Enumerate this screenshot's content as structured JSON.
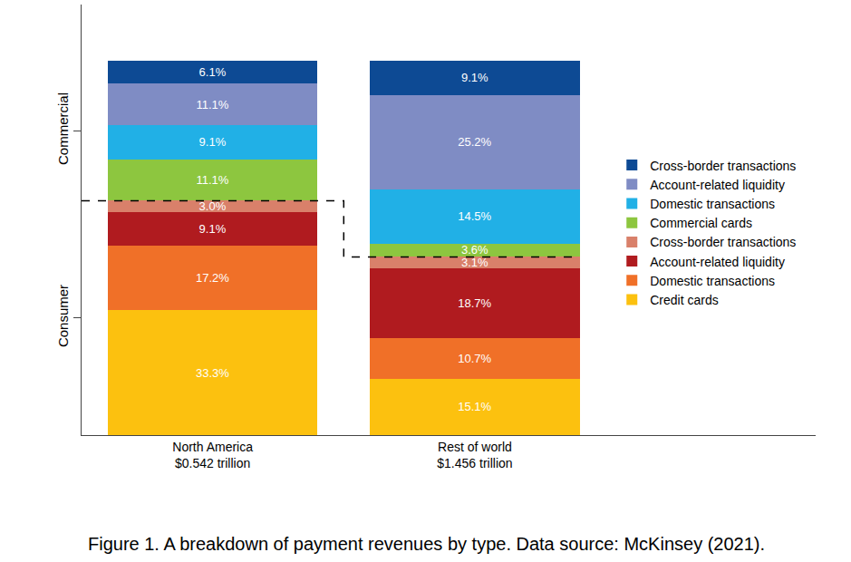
{
  "chart_data": {
    "type": "bar",
    "stacked": true,
    "data_labels": true,
    "grid": false,
    "legend": "right",
    "categories": [
      "North America\n$0.542 trillion",
      "Rest of world\n$1.456 trillion"
    ],
    "ylim": [
      0,
      115
    ],
    "yticks": [
      {
        "value": 31.3,
        "label": "Consumer"
      },
      {
        "value": 81.3,
        "label": "Commercial"
      }
    ],
    "annotations": [
      "Figure 1. A breakdown of payment revenues by type. Data source: McKinsey (2021)."
    ],
    "series": [
      {
        "name": "Credit cards",
        "color": "#fcc10f",
        "values": [
          33.3,
          15.1
        ],
        "value_labels": [
          "33.3%",
          "15.1%"
        ]
      },
      {
        "name": "Domestic transactions",
        "color": "#f07028",
        "values": [
          17.2,
          10.7
        ],
        "value_labels": [
          "17.2%",
          "10.7%"
        ]
      },
      {
        "name": "Account-related liquidity",
        "color": "#b01b1f",
        "values": [
          9.1,
          18.7
        ],
        "value_labels": [
          "9.1%",
          "18.7%"
        ]
      },
      {
        "name": "Cross-border transactions",
        "color": "#d9806a",
        "values": [
          3.0,
          3.1
        ],
        "value_labels": [
          "3.0%",
          "3.1%"
        ]
      },
      {
        "name": "Commercial cards",
        "color": "#8dc63f",
        "values": [
          11.1,
          3.6
        ],
        "value_labels": [
          "11.1%",
          "3.6%"
        ]
      },
      {
        "name": "Domestic transactions",
        "color": "#21b0e6",
        "values": [
          9.1,
          14.5
        ],
        "value_labels": [
          "9.1%",
          "14.5%"
        ]
      },
      {
        "name": "Account-related liquidity",
        "color": "#7f8cc4",
        "values": [
          11.1,
          25.2
        ],
        "value_labels": [
          "11.1%",
          "25.2%"
        ]
      },
      {
        "name": "Cross-border transactions",
        "color": "#0d4a94",
        "values": [
          6.1,
          9.1
        ],
        "value_labels": [
          "6.1%",
          "9.1%"
        ]
      }
    ]
  }
}
